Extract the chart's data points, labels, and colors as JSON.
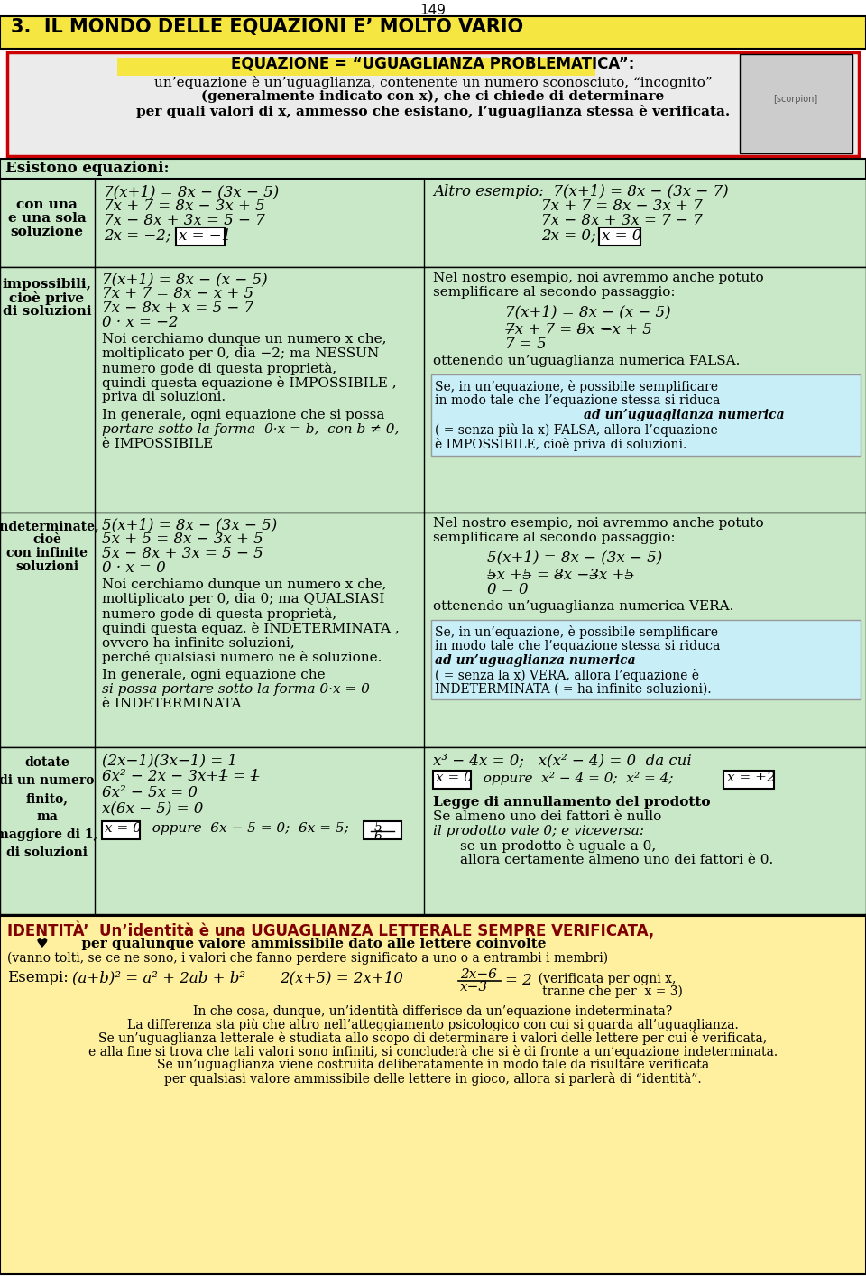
{
  "page_num": "149",
  "title": "3.  IL MONDO DELLE EQUAZIONI E’ MOLTO VARIO",
  "title_bg": "#F5E642",
  "white": "#FFFFFF",
  "light_green": "#C8E8C8",
  "light_blue": "#C8EEF8",
  "light_yellow": "#FFF0A0",
  "def_bg": "#EBEBEB",
  "def_border": "#CC0000",
  "page_bg": "#FFFFFF",
  "scorpion_bg": "#CCCCCC"
}
